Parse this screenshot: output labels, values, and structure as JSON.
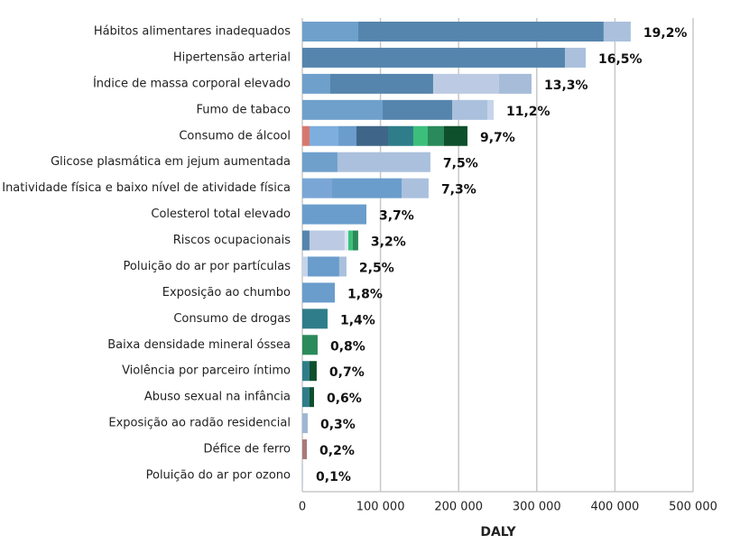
{
  "chart_data": {
    "type": "stacked-bar",
    "orientation": "horizontal",
    "x_label": "DALY",
    "categories": [
      "Hábitos alimentares inadequados",
      "Hipertensão arterial",
      "Índice de massa corporal elevado",
      "Fumo de tabaco",
      "Consumo de álcool",
      "Glicose plasmática em jejum aumentada",
      "Inatividade física e baixo nível de atividade física",
      "Colesterol total elevado",
      "Riscos ocupacionais",
      "Poluição do ar por partículas",
      "Exposição ao chumbo",
      "Consumo de drogas",
      "Baixa densidade mineral óssea",
      "Violência por parceiro íntimo",
      "Abuso sexual na infância",
      "Exposição ao radão residencial",
      "Défice de ferro",
      "Poluição do ar por ozono"
    ],
    "share_labels": [
      "19,2%",
      "16,5%",
      "13,3%",
      "11,2%",
      "9,7%",
      "7,5%",
      "7,3%",
      "3,7%",
      "3,2%",
      "2,5%",
      "1,8%",
      "1,4%",
      "0,8%",
      "0,7%",
      "0,6%",
      "0,3%",
      "0,2%",
      "0,1%"
    ],
    "segments": [
      [
        {
          "value": 71600,
          "color": "#6fa0cc"
        },
        {
          "value": 314000,
          "color": "#5585ad"
        },
        {
          "value": 34600,
          "color": "#aac0dd"
        }
      ],
      [
        {
          "value": 336000,
          "color": "#5585ad"
        },
        {
          "value": 26600,
          "color": "#aac0dd"
        }
      ],
      [
        {
          "value": 35800,
          "color": "#6fa0cc"
        },
        {
          "value": 131600,
          "color": "#5585ad"
        },
        {
          "value": 84300,
          "color": "#bccbe3"
        },
        {
          "value": 41600,
          "color": "#a7bcd8"
        }
      ],
      [
        {
          "value": 102800,
          "color": "#6fa0cc"
        },
        {
          "value": 88900,
          "color": "#5585ad"
        },
        {
          "value": 45000,
          "color": "#aac0dd"
        },
        {
          "value": 8100,
          "color": "#c5d4e8"
        }
      ],
      [
        {
          "value": 9200,
          "color": "#d9776c"
        },
        {
          "value": 37000,
          "color": "#7eaede"
        },
        {
          "value": 23100,
          "color": "#6a9dcc"
        },
        {
          "value": 40400,
          "color": "#3f6688"
        },
        {
          "value": 32300,
          "color": "#2f7d8a"
        },
        {
          "value": 18500,
          "color": "#3cbf7b"
        },
        {
          "value": 20800,
          "color": "#2b8a5a"
        },
        {
          "value": 30000,
          "color": "#0e4f2c"
        }
      ],
      [
        {
          "value": 45000,
          "color": "#6fa0cc"
        },
        {
          "value": 118900,
          "color": "#aac0dd"
        }
      ],
      [
        {
          "value": 38100,
          "color": "#7aa6d6"
        },
        {
          "value": 88900,
          "color": "#6a9dcc"
        },
        {
          "value": 34600,
          "color": "#aac0dd"
        }
      ],
      [
        {
          "value": 82000,
          "color": "#6a9dcc"
        }
      ],
      [
        {
          "value": 9200,
          "color": "#5585ad"
        },
        {
          "value": 45000,
          "color": "#bccbe3"
        },
        {
          "value": 4600,
          "color": "#dde7f2"
        },
        {
          "value": 5800,
          "color": "#3cbf7b"
        },
        {
          "value": 6900,
          "color": "#2b8a5a"
        }
      ],
      [
        {
          "value": 6900,
          "color": "#c5d4e8"
        },
        {
          "value": 40400,
          "color": "#6a9dcc"
        },
        {
          "value": 9200,
          "color": "#aac0dd"
        }
      ],
      [
        {
          "value": 41600,
          "color": "#6a9dcc"
        }
      ],
      [
        {
          "value": 32300,
          "color": "#2f7d8a"
        }
      ],
      [
        {
          "value": 19600,
          "color": "#2b8a5a"
        }
      ],
      [
        {
          "value": 9200,
          "color": "#2f7d8a"
        },
        {
          "value": 9200,
          "color": "#0e4f2c"
        }
      ],
      [
        {
          "value": 9200,
          "color": "#2f7d8a"
        },
        {
          "value": 5800,
          "color": "#0e4f2c"
        }
      ],
      [
        {
          "value": 6900,
          "color": "#9fb6d4"
        }
      ],
      [
        {
          "value": 5800,
          "color": "#a9797a"
        }
      ],
      [
        {
          "value": 1200,
          "color": "#c5d4e8"
        }
      ]
    ],
    "xlim": [
      0,
      500000
    ],
    "xticks": [
      0,
      {
        "value": 100000,
        "label": "100 000"
      },
      {
        "value": 200000,
        "label": "200 000"
      },
      {
        "value": 300000,
        "label": "300 000"
      },
      {
        "value": 400000,
        "label": "400 000"
      },
      {
        "value": 500000,
        "label": "500 000"
      }
    ],
    "grid": true,
    "grid_color": "#c8c8c8"
  }
}
